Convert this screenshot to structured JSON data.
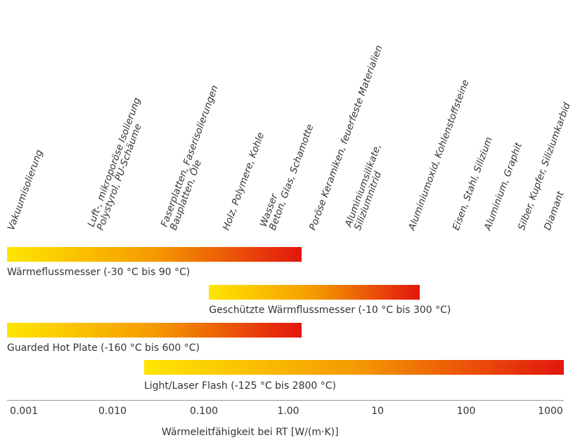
{
  "chart_data": {
    "type": "bar",
    "subtype": "range-bars",
    "xscale": "log",
    "xlabel": "Wärmeleitfähigkeit bei RT [W/(m·K)]",
    "xticks": [
      "0.001",
      "0.010",
      "0.100",
      "1.00",
      "10",
      "100",
      "1000"
    ],
    "xlim": [
      0.001,
      1000
    ],
    "categories": [
      {
        "lines": [
          "Vakuumisolierung"
        ]
      },
      {
        "lines": [
          "Luft-, mikroporöse Isolierung",
          "Polystyrol, PU-Schäume"
        ]
      },
      {
        "lines": [
          "Faserplatten, Faserisolierungen",
          "Bauplatten, Öle"
        ]
      },
      {
        "lines": [
          "Holz, Polymere, Kohle"
        ]
      },
      {
        "lines": [
          "Wasser",
          "Beton, Glas, Schamotte"
        ]
      },
      {
        "lines": [
          "Poröse Keramiken, feuerfeste Materialien"
        ]
      },
      {
        "lines": [
          "Aluminiumsilikate,",
          "Siliziumnitrid"
        ]
      },
      {
        "lines": [
          "Aluminiumoxid, Kohlenstoffsteine"
        ]
      },
      {
        "lines": [
          "Eisen, Stahl, Silizium"
        ]
      },
      {
        "lines": [
          "Aluminium, Graphit"
        ]
      },
      {
        "lines": [
          "Silber, Kupfer, Siliziumkarbid"
        ]
      },
      {
        "lines": [
          "Diamant"
        ]
      }
    ],
    "series": [
      {
        "name": "Wärmeflussmesser (-30 °C bis 90 °C)",
        "min": 0.001,
        "max": 1.5
      },
      {
        "name": "Geschützte Wärmflussmesser (-10 °C bis 300 °C)",
        "min": 0.15,
        "max": 28
      },
      {
        "name": "Guarded Hot Plate (-160 °C bis 600 °C)",
        "min": 0.001,
        "max": 1.5
      },
      {
        "name": "Light/Laser Flash (-125 °C bis 2800 °C)",
        "min": 0.03,
        "max": 1600
      }
    ],
    "colors": {
      "gradient_start": "#ffe600",
      "gradient_mid": "#f59a00",
      "gradient_end": "#e2160f",
      "axis": "#9a9a9a",
      "text": "#333333"
    }
  }
}
